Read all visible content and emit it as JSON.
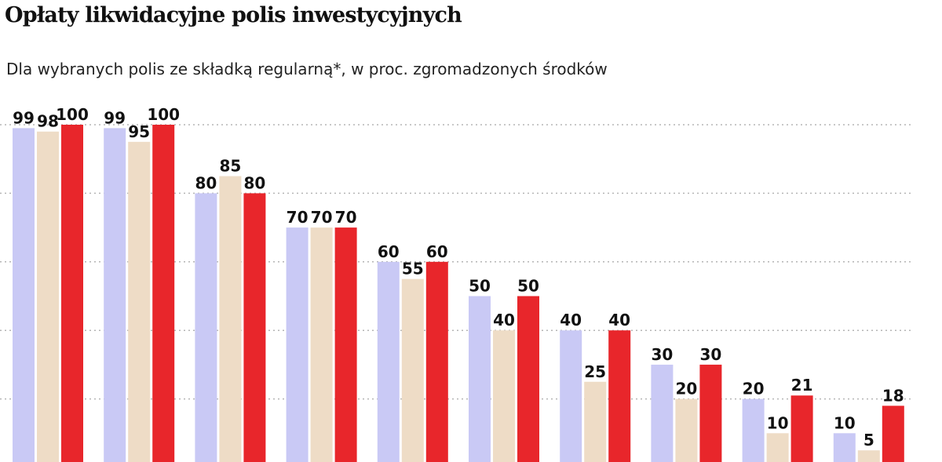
{
  "title": "Opłaty likwidacyjne polis inwestycyjnych",
  "subtitle": "Dla wybranych polis ze składką regularną*, w proc. zgromadzonych środków",
  "colors": {
    "series_1": "#c9c9f5",
    "series_2": "#eedcc6",
    "series_3": "#e8262b",
    "grid": "#b5b5b5"
  },
  "chart_data": {
    "type": "bar",
    "ylim": [
      0,
      100
    ],
    "grid": true,
    "gridlines_at": [
      20,
      40,
      60,
      80,
      100
    ],
    "groups": 10,
    "series": [
      {
        "values": [
          99,
          99,
          80,
          70,
          60,
          50,
          40,
          30,
          20,
          10
        ]
      },
      {
        "values": [
          98,
          95,
          85,
          70,
          55,
          40,
          25,
          20,
          10,
          5
        ]
      },
      {
        "values": [
          100,
          100,
          80,
          70,
          60,
          50,
          40,
          30,
          21,
          18
        ]
      }
    ]
  }
}
